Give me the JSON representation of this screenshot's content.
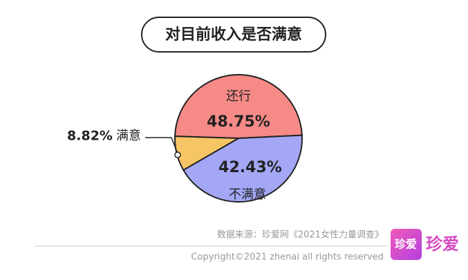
{
  "chart_data": {
    "type": "pie",
    "title": "对目前收入是否满意",
    "categories": [
      "还行",
      "不满意",
      "满意"
    ],
    "values": [
      48.75,
      42.43,
      8.82
    ],
    "value_labels": [
      "48.75%",
      "42.43%",
      "8.82%"
    ],
    "colors": [
      "#f68a87",
      "#a3a7f6",
      "#f6c565"
    ]
  },
  "footer": {
    "source": "数据来源：珍爱网《2021女性力量调查》",
    "copyright": "Copyright©2021  zhenai  all rights reserved",
    "logo_text": "珍爱",
    "brand": "珍爱"
  }
}
